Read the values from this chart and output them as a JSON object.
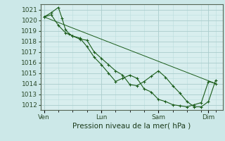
{
  "xlabel": "Pression niveau de la mer( hPa )",
  "bg_color": "#cce8e8",
  "grid_color_major": "#aacccc",
  "grid_color_minor": "#bbdddd",
  "plot_bg": "#d8eeee",
  "line_color": "#1a5c1a",
  "ylim": [
    1011.5,
    1021.5
  ],
  "yticks": [
    1012,
    1013,
    1014,
    1015,
    1016,
    1017,
    1018,
    1019,
    1020,
    1021
  ],
  "day_labels": [
    "Ven",
    "Lun",
    "Sam",
    "Dim"
  ],
  "day_positions": [
    0,
    48,
    96,
    138
  ],
  "series1_x": [
    0,
    6,
    12,
    15,
    18,
    21,
    24,
    30,
    36,
    42,
    48,
    54,
    60,
    66,
    72,
    78,
    84,
    90,
    96,
    102,
    108,
    114,
    120,
    126,
    132,
    138,
    144
  ],
  "series1_y": [
    1020.3,
    1020.7,
    1021.2,
    1020.2,
    1019.1,
    1018.7,
    1018.5,
    1018.2,
    1018.1,
    1017.0,
    1016.4,
    1015.8,
    1015.2,
    1014.8,
    1013.9,
    1013.8,
    1014.2,
    1014.7,
    1015.2,
    1014.6,
    1013.8,
    1013.1,
    1012.3,
    1011.8,
    1011.8,
    1012.3,
    1014.3
  ],
  "series2_x": [
    0,
    6,
    12,
    18,
    24,
    30,
    36,
    42,
    48,
    54,
    60,
    66,
    72,
    78,
    84,
    90,
    96,
    102,
    108,
    114,
    120,
    126,
    132,
    138,
    144
  ],
  "series2_y": [
    1020.3,
    1020.5,
    1019.5,
    1018.8,
    1018.5,
    1018.3,
    1017.5,
    1016.5,
    1015.8,
    1015.0,
    1014.2,
    1014.5,
    1014.8,
    1014.5,
    1013.5,
    1013.2,
    1012.5,
    1012.3,
    1012.0,
    1011.9,
    1011.8,
    1012.0,
    1012.2,
    1014.2,
    1014.0
  ],
  "trend_x": [
    0,
    144
  ],
  "trend_y": [
    1020.3,
    1014.0
  ],
  "xlim": [
    -3,
    150
  ],
  "tick_fontsize": 6.5,
  "label_fontsize": 7.5
}
